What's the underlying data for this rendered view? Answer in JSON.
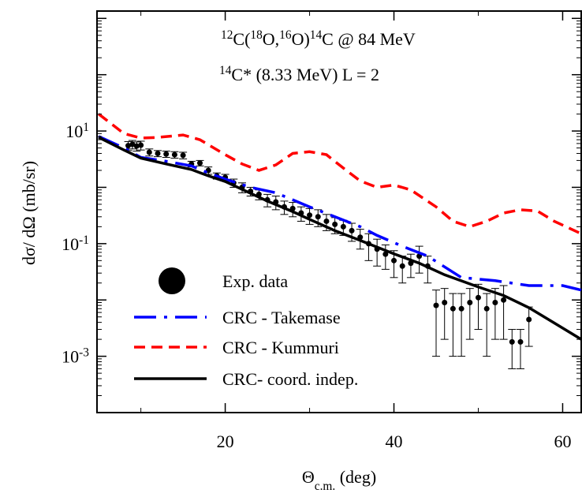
{
  "chart_data": {
    "type": "line",
    "log_y": true,
    "annotations": [
      "^{12}C(^{18}O,^{16}O)^{14}C @ 84 MeV",
      "^{14}C* (8.33 MeV) L = 2"
    ],
    "x_label": "Θ_{c.m.} (deg)",
    "y_label": "dσ/ dΩ (mb/sr)",
    "xlim": [
      4.8,
      62.2
    ],
    "xticks": [
      20,
      40,
      60
    ],
    "xminorticks": [
      10,
      30,
      50
    ],
    "ylim": [
      0.0001,
      1350
    ],
    "yticks": [
      {
        "value": 10,
        "label": "10^{1}"
      },
      {
        "value": 0.1,
        "label": "10^{-1}"
      },
      {
        "value": 0.001,
        "label": "10^{-3}"
      }
    ],
    "yminorticks": [
      0.0001,
      0.01,
      1,
      100,
      1000
    ],
    "scatter": {
      "name": "Exp. data",
      "color": "#000000",
      "x": [
        8.5,
        9,
        9.5,
        10,
        11,
        12,
        13,
        14,
        15,
        16,
        17,
        18,
        19,
        20,
        21,
        22,
        23,
        24,
        25,
        26,
        27,
        28,
        29,
        30,
        31,
        32,
        33,
        34,
        35,
        36,
        37,
        38,
        39,
        40,
        41,
        42,
        43,
        44,
        45,
        46,
        47,
        48,
        49,
        50,
        51,
        52,
        53,
        54,
        55,
        56
      ],
      "values": [
        5.5,
        5.8,
        5.4,
        5.6,
        4.2,
        4.0,
        3.9,
        3.8,
        3.7,
        2.6,
        2.7,
        2.0,
        1.6,
        1.5,
        1.2,
        1.0,
        0.85,
        0.75,
        0.6,
        0.55,
        0.45,
        0.42,
        0.35,
        0.32,
        0.3,
        0.25,
        0.22,
        0.2,
        0.17,
        0.13,
        0.1,
        0.08,
        0.065,
        0.05,
        0.04,
        0.045,
        0.06,
        0.04,
        0.008,
        0.009,
        0.007,
        0.007,
        0.009,
        0.011,
        0.007,
        0.009,
        0.01,
        0.0018,
        0.0018,
        0.0045
      ],
      "errors": [
        1.0,
        1.0,
        1.0,
        1.0,
        0.6,
        0.5,
        0.5,
        0.5,
        0.5,
        0.3,
        0.3,
        0.3,
        0.2,
        0.2,
        0.2,
        0.2,
        0.15,
        0.15,
        0.15,
        0.15,
        0.12,
        0.12,
        0.1,
        0.1,
        0.1,
        0.08,
        0.07,
        0.06,
        0.06,
        0.05,
        0.05,
        0.04,
        0.03,
        0.025,
        0.02,
        0.02,
        0.03,
        0.02,
        0.007,
        0.007,
        0.006,
        0.006,
        0.007,
        0.008,
        0.006,
        0.007,
        0.008,
        0.0012,
        0.0012,
        0.003
      ]
    },
    "series": [
      {
        "name": "CRC - Takemase",
        "color": "#0000ff",
        "style": "dash-dot",
        "x": [
          5,
          8,
          10,
          13,
          16,
          18,
          20,
          23,
          26,
          28,
          30,
          33,
          36,
          38,
          41,
          44,
          48,
          52,
          56,
          60,
          62.2
        ],
        "values": [
          8.0,
          5.0,
          3.4,
          2.9,
          2.4,
          1.8,
          1.4,
          1.0,
          0.8,
          0.6,
          0.45,
          0.3,
          0.2,
          0.14,
          0.09,
          0.06,
          0.025,
          0.022,
          0.018,
          0.018,
          0.015
        ]
      },
      {
        "name": "CRC - Kummuri",
        "color": "#ff0000",
        "style": "dashed",
        "x": [
          5,
          8,
          10,
          12,
          15,
          17,
          20,
          22,
          24,
          26,
          28,
          30,
          32,
          34,
          36,
          38,
          40,
          42,
          45,
          47,
          49,
          51,
          53,
          55,
          57,
          59,
          62.2
        ],
        "values": [
          20,
          9,
          7.5,
          7.7,
          8.5,
          7,
          3.8,
          2.6,
          2.0,
          2.5,
          4.0,
          4.3,
          3.8,
          2.2,
          1.3,
          1.0,
          1.1,
          0.9,
          0.45,
          0.25,
          0.2,
          0.25,
          0.35,
          0.4,
          0.38,
          0.25,
          0.15
        ]
      },
      {
        "name": "CRC- coord. indep.",
        "color": "#000000",
        "style": "solid",
        "x": [
          5,
          8,
          10,
          13,
          16,
          18,
          20,
          22,
          25,
          28,
          30,
          33,
          36,
          40,
          43,
          46,
          50,
          53,
          56,
          59,
          62.2
        ],
        "values": [
          7.7,
          4.6,
          3.3,
          2.6,
          2.07,
          1.6,
          1.27,
          0.92,
          0.57,
          0.37,
          0.27,
          0.17,
          0.114,
          0.066,
          0.045,
          0.028,
          0.017,
          0.012,
          0.0073,
          0.0039,
          0.002
        ]
      }
    ]
  }
}
